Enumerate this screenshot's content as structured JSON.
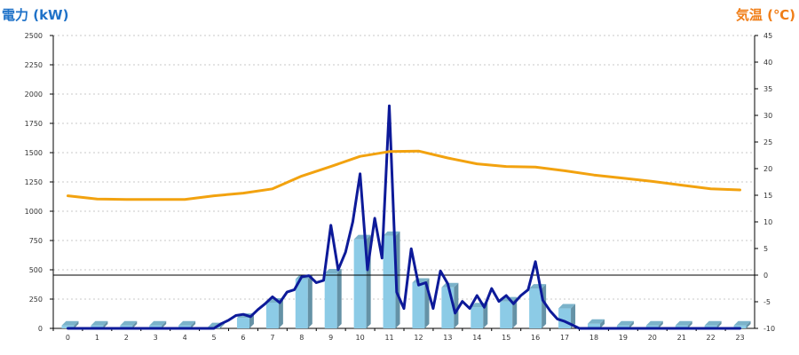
{
  "chart_data": {
    "type": "bar",
    "left_axis_title": "電力 (kW)",
    "right_axis_title": "気温 (℃)",
    "categories": [
      "0",
      "1",
      "2",
      "3",
      "4",
      "5",
      "6",
      "7",
      "8",
      "9",
      "10",
      "11",
      "12",
      "13",
      "14",
      "15",
      "16",
      "17",
      "18",
      "19",
      "20",
      "21",
      "22",
      "23"
    ],
    "y_left": {
      "min": 0,
      "max": 2500,
      "ticks": [
        0,
        250,
        500,
        750,
        1000,
        1250,
        1500,
        1750,
        2000,
        2250,
        2500
      ]
    },
    "y_right": {
      "min": -10,
      "max": 45,
      "ticks": [
        -10,
        -5,
        0,
        5,
        10,
        15,
        20,
        25,
        30,
        35,
        40,
        45
      ]
    },
    "reference_line": {
      "axis": "right",
      "value": 0
    },
    "grid": "horizontal dotted",
    "series": [
      {
        "kind": "bar",
        "axis": "left",
        "color": "#8ccbe6",
        "values": [
          25,
          25,
          25,
          25,
          25,
          10,
          90,
          220,
          420,
          470,
          760,
          790,
          390,
          350,
          180,
          230,
          340,
          170,
          40,
          25,
          25,
          25,
          25,
          25
        ]
      },
      {
        "kind": "line",
        "axis": "left",
        "color": "#0d1a99",
        "x": [
          0,
          1,
          2,
          3,
          4,
          5,
          5.25,
          5.5,
          5.75,
          6,
          6.25,
          6.5,
          6.75,
          7,
          7.25,
          7.5,
          7.75,
          8,
          8.25,
          8.5,
          8.75,
          9,
          9.25,
          9.5,
          9.75,
          10,
          10.25,
          10.5,
          10.75,
          11,
          11.25,
          11.5,
          11.75,
          12,
          12.25,
          12.5,
          12.75,
          13,
          13.25,
          13.5,
          13.75,
          14,
          14.25,
          14.5,
          14.75,
          15,
          15.25,
          15.5,
          15.75,
          16,
          16.25,
          16.5,
          16.75,
          17,
          17.25,
          17.5,
          17.75,
          18,
          19,
          20,
          21,
          22,
          23
        ],
        "values": [
          0,
          0,
          0,
          0,
          0,
          0,
          40,
          70,
          110,
          120,
          100,
          160,
          210,
          270,
          220,
          310,
          330,
          440,
          450,
          390,
          410,
          880,
          500,
          650,
          910,
          1320,
          500,
          940,
          600,
          1900,
          310,
          170,
          680,
          370,
          390,
          170,
          490,
          380,
          130,
          230,
          170,
          280,
          180,
          340,
          230,
          280,
          210,
          280,
          330,
          570,
          240,
          150,
          80,
          60,
          30,
          0,
          0,
          0,
          0,
          0,
          0,
          0,
          0
        ]
      },
      {
        "kind": "line",
        "axis": "right",
        "color": "#f2a20f",
        "x": [
          0,
          1,
          2,
          3,
          4,
          5,
          6,
          7,
          8,
          9,
          10,
          11,
          12,
          13,
          14,
          15,
          16,
          17,
          18,
          19,
          20,
          21,
          22,
          23
        ],
        "values": [
          14.9,
          14.3,
          14.2,
          14.2,
          14.2,
          14.9,
          15.4,
          16.2,
          18.6,
          20.4,
          22.3,
          23.2,
          23.3,
          22.0,
          20.9,
          20.4,
          20.3,
          19.6,
          18.8,
          18.2,
          17.6,
          16.9,
          16.2,
          16.0
        ]
      }
    ]
  }
}
